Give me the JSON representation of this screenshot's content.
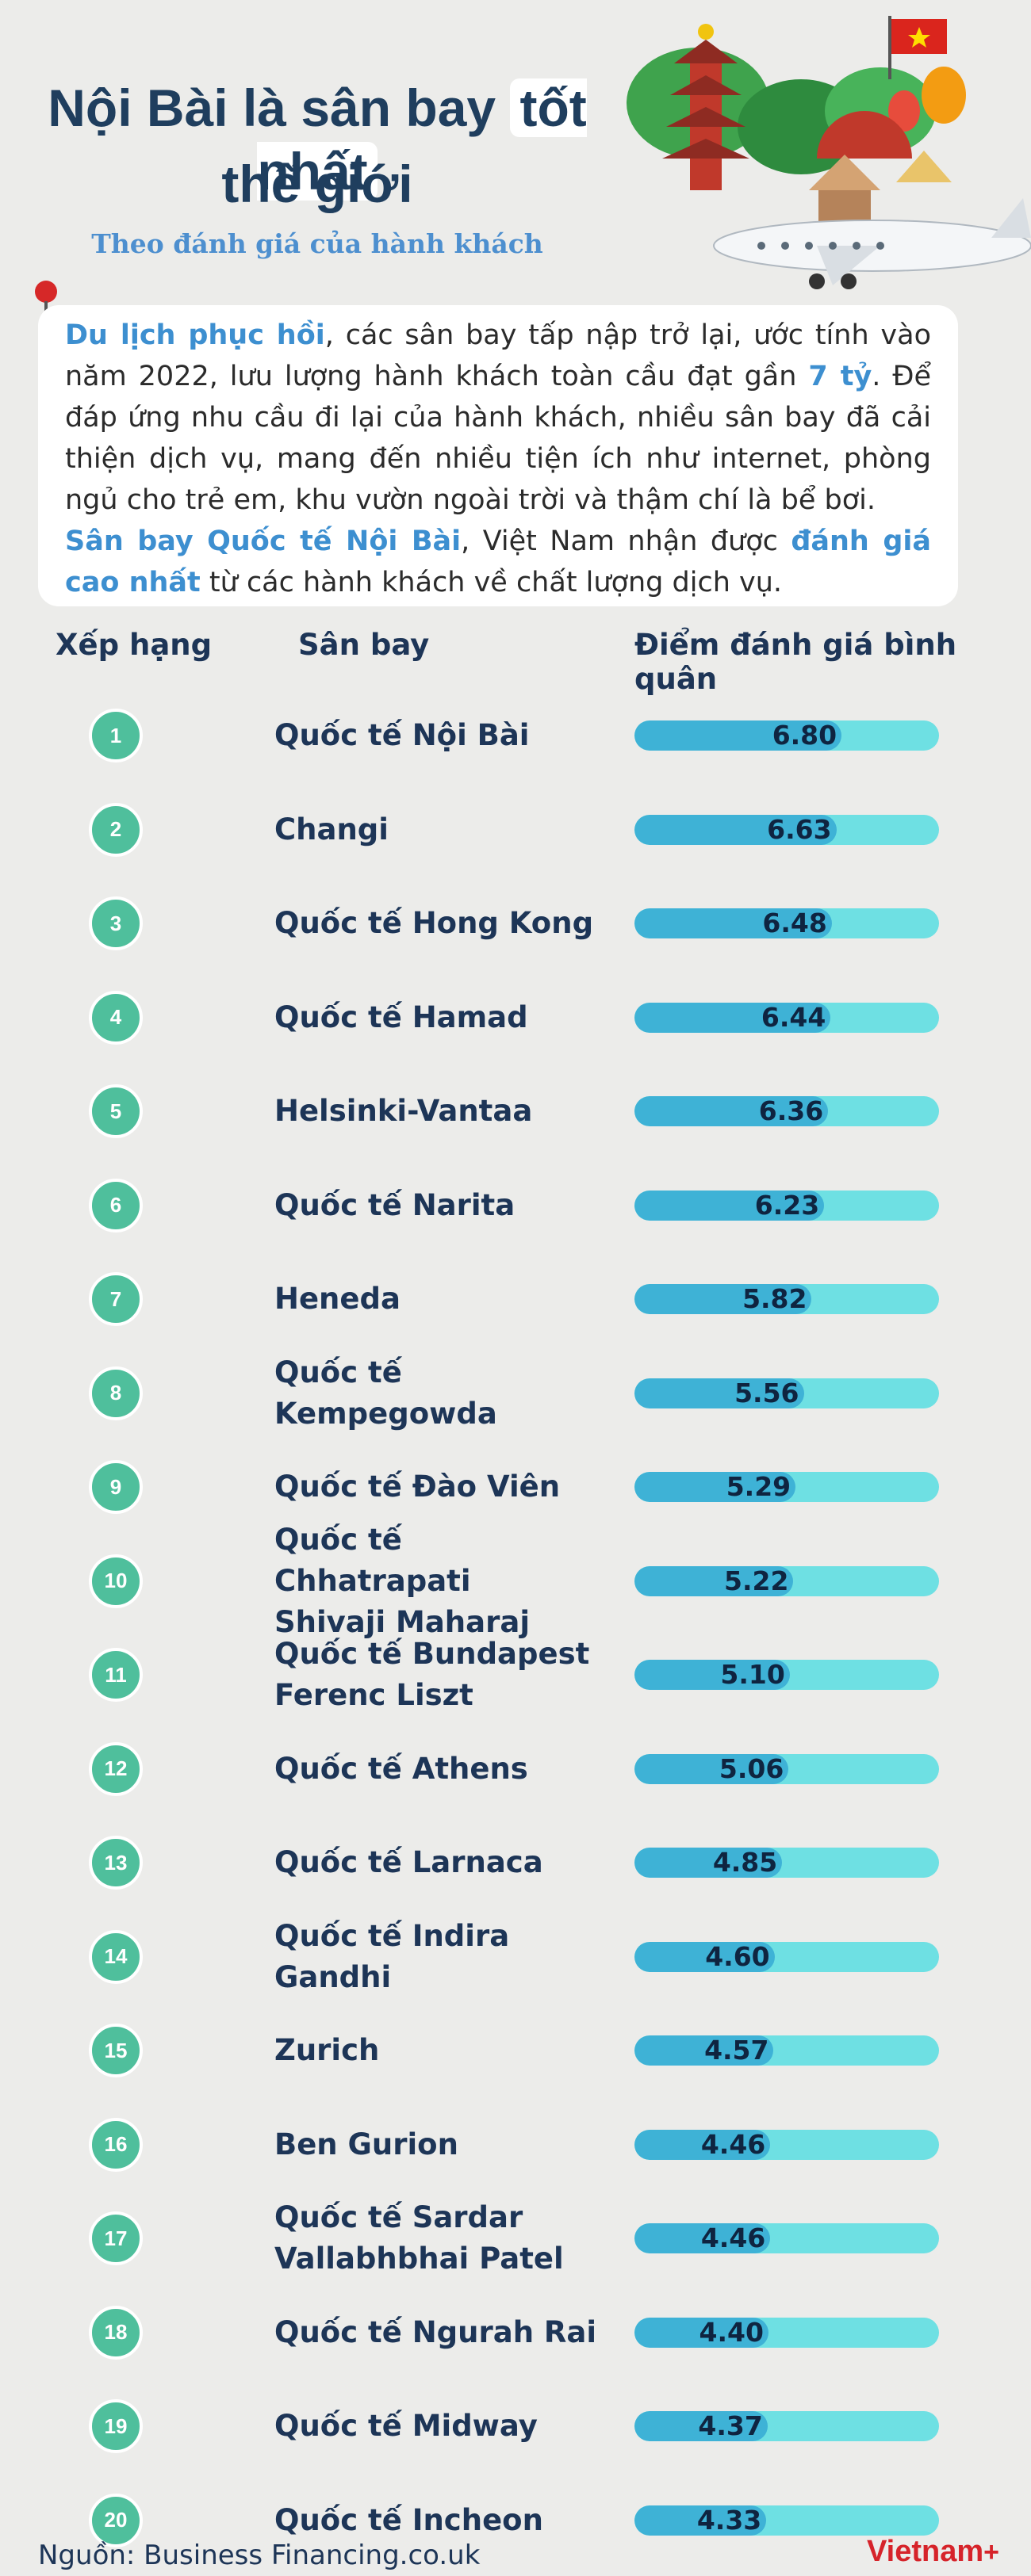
{
  "title": {
    "line1_a": "Nội Bài là sân bay ",
    "line1_b": "tốt nhất",
    "line2": "thế giới"
  },
  "subtitle": "Theo đánh giá của hành khách",
  "intro": {
    "p1_hl1": "Du lịch phục hồi",
    "p1_t1": ", các sân bay tấp nập trở lại, ước tính vào năm 2022, lưu lượng hành khách toàn cầu đạt gần ",
    "p1_hl2": "7 tỷ",
    "p1_t2": ". Để đáp ứng nhu cầu đi lại của hành khách, nhiều sân bay đã cải thiện dịch vụ, mang đến nhiều tiện ích như internet, phòng ngủ cho trẻ em, khu vườn ngoài trời và thậm chí là bể bơi.",
    "p2_hl1": "Sân bay Quốc tế Nội Bài",
    "p2_t1": ", Việt Nam nhận được ",
    "p2_hl2": "đánh giá cao nhất",
    "p2_t2": " từ các hành khách về chất lượng dịch vụ."
  },
  "columns": {
    "rank": "Xếp hạng",
    "airport": "Sân bay",
    "score": "Điểm đánh giá bình quân"
  },
  "chart_data": {
    "type": "bar",
    "orientation": "horizontal",
    "xlim": [
      0,
      10
    ],
    "categories": [
      "Quốc tế Nội Bài",
      "Changi",
      "Quốc tế Hong Kong",
      "Quốc tế Hamad",
      "Helsinki-Vantaa",
      "Quốc tế Narita",
      "Heneda",
      "Quốc tế Kempegowda",
      "Quốc tế Đào Viên",
      "Quốc tế Chhatrapati\nShivaji Maharaj",
      "Quốc tế Bundapest\nFerenc Liszt",
      "Quốc tế Athens",
      "Quốc tế Larnaca",
      "Quốc tế Indira\nGandhi",
      "Zurich",
      "Ben Gurion",
      "Quốc tế Sardar\nVallabhbhai Patel",
      "Quốc tế Ngurah Rai",
      "Quốc tế Midway",
      "Quốc tế Incheon"
    ],
    "ranks": [
      "1",
      "2",
      "3",
      "4",
      "5",
      "6",
      "7",
      "8",
      "9",
      "10",
      "11",
      "12",
      "13",
      "14",
      "15",
      "16",
      "17",
      "18",
      "19",
      "20"
    ],
    "values": [
      6.8,
      6.63,
      6.48,
      6.44,
      6.36,
      6.23,
      5.82,
      5.56,
      5.29,
      5.22,
      5.1,
      5.06,
      4.85,
      4.6,
      4.57,
      4.46,
      4.46,
      4.4,
      4.37,
      4.33
    ],
    "labels": [
      "6.80",
      "6.63",
      "6.48",
      "6.44",
      "6.36",
      "6.23",
      "5.82",
      "5.56",
      "5.29",
      "5.22",
      "5.10",
      "5.06",
      "4.85",
      "4.60",
      "4.57",
      "4.46",
      "4.46",
      "4.40",
      "4.37",
      "4.33"
    ]
  },
  "colors": {
    "bar_fill": "#3eb2d6",
    "bar_track": "#6ee0e3",
    "rank_circle": "#4fbf9c",
    "accent_text": "#3d8fd0",
    "title": "#1f3e5e"
  },
  "source": "Nguồn: Business Financing.co.uk",
  "logo": {
    "text": "Vietnam",
    "plus": "+"
  }
}
